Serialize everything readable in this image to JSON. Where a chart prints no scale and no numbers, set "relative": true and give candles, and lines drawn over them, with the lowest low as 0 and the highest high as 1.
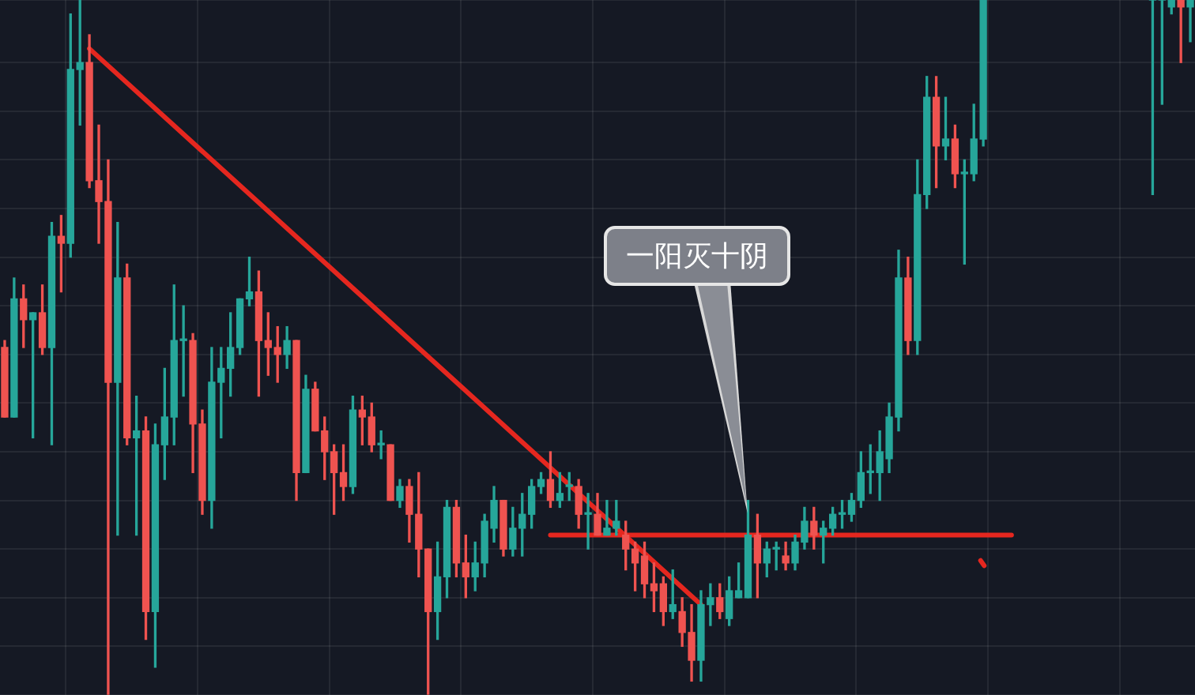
{
  "chart_data": {
    "type": "candlestick",
    "relative": true,
    "grid": true,
    "legend": false,
    "annotations": [
      "一阳灭十阴"
    ],
    "categories": [
      null,
      null,
      null,
      null,
      null,
      null,
      null,
      null,
      null,
      null,
      null,
      null,
      null,
      null,
      null,
      null,
      null,
      null,
      null,
      null,
      null,
      null,
      null,
      null,
      null,
      null,
      null,
      null,
      null,
      null,
      null,
      null,
      null,
      null,
      null,
      null,
      null,
      null,
      null,
      null,
      null,
      null,
      null,
      null,
      null,
      null,
      null,
      null,
      null,
      null,
      null,
      null,
      null,
      null,
      null,
      null,
      null,
      null,
      null,
      null,
      null,
      null,
      null,
      null,
      null,
      null,
      null,
      null,
      null,
      null,
      null,
      null,
      null,
      null,
      null,
      null,
      null,
      null,
      null,
      null,
      null,
      null,
      null,
      null,
      null,
      null,
      null,
      null,
      null,
      null,
      null,
      null,
      null,
      null,
      null,
      null,
      null,
      null,
      null,
      null,
      null,
      null,
      null,
      null,
      null,
      null,
      null,
      null,
      null,
      null,
      null,
      null,
      null,
      null,
      null,
      null,
      null,
      null,
      null,
      null,
      null,
      null,
      null,
      null,
      null,
      null,
      null
    ],
    "ohlc": [
      [
        0.5,
        0.51,
        0.4,
        0.4
      ],
      [
        0.4,
        0.6,
        0.4,
        0.57
      ],
      [
        0.57,
        0.59,
        0.5,
        0.54
      ],
      [
        0.54,
        0.55,
        0.37,
        0.55
      ],
      [
        0.55,
        0.59,
        0.49,
        0.5
      ],
      [
        0.5,
        0.68,
        0.36,
        0.66
      ],
      [
        0.66,
        0.69,
        0.58,
        0.65
      ],
      [
        0.65,
        0.98,
        0.63,
        0.9
      ],
      [
        0.9,
        1,
        0.82,
        0.91
      ],
      [
        0.91,
        0.95,
        0.73,
        0.74
      ],
      [
        0.74,
        0.82,
        0.65,
        0.71
      ],
      [
        0.71,
        0.77,
        0,
        0.45
      ],
      [
        0.45,
        0.68,
        0.23,
        0.6
      ],
      [
        0.6,
        0.62,
        0.36,
        0.37
      ],
      [
        0.37,
        0.43,
        0.23,
        0.38
      ],
      [
        0.38,
        0.4,
        0.08,
        0.12
      ],
      [
        0.12,
        0.39,
        0.04,
        0.36
      ],
      [
        0.36,
        0.47,
        0.31,
        0.4
      ],
      [
        0.4,
        0.59,
        0.36,
        0.51
      ],
      [
        0.51,
        0.56,
        0.43,
        0.51
      ],
      [
        0.51,
        0.52,
        0.32,
        0.39
      ],
      [
        0.39,
        0.41,
        0.26,
        0.28
      ],
      [
        0.28,
        0.5,
        0.24,
        0.45
      ],
      [
        0.45,
        0.5,
        0.37,
        0.47
      ],
      [
        0.47,
        0.55,
        0.43,
        0.5
      ],
      [
        0.5,
        0.57,
        0.49,
        0.57
      ],
      [
        0.57,
        0.63,
        0.56,
        0.58
      ],
      [
        0.58,
        0.61,
        0.43,
        0.51
      ],
      [
        0.51,
        0.55,
        0.46,
        0.5
      ],
      [
        0.5,
        0.53,
        0.45,
        0.49
      ],
      [
        0.49,
        0.53,
        0.47,
        0.51
      ],
      [
        0.51,
        0.51,
        0.28,
        0.32
      ],
      [
        0.32,
        0.46,
        0.32,
        0.44
      ],
      [
        0.44,
        0.45,
        0.38,
        0.38
      ],
      [
        0.38,
        0.4,
        0.31,
        0.35
      ],
      [
        0.35,
        0.36,
        0.26,
        0.32
      ],
      [
        0.32,
        0.36,
        0.28,
        0.3
      ],
      [
        0.3,
        0.43,
        0.29,
        0.41
      ],
      [
        0.41,
        0.43,
        0.36,
        0.4
      ],
      [
        0.4,
        0.42,
        0.35,
        0.36
      ],
      [
        0.36,
        0.38,
        0.34,
        0.36
      ],
      [
        0.36,
        0.36,
        0.28,
        0.28
      ],
      [
        0.28,
        0.31,
        0.27,
        0.3
      ],
      [
        0.3,
        0.31,
        0.22,
        0.26
      ],
      [
        0.26,
        0.32,
        0.17,
        0.21
      ],
      [
        0.21,
        0.21,
        0,
        0.12
      ],
      [
        0.12,
        0.22,
        0.08,
        0.17
      ],
      [
        0.17,
        0.28,
        0.14,
        0.27
      ],
      [
        0.27,
        0.28,
        0.17,
        0.19
      ],
      [
        0.19,
        0.23,
        0.14,
        0.17
      ],
      [
        0.17,
        0.22,
        0.15,
        0.19
      ],
      [
        0.19,
        0.26,
        0.17,
        0.25
      ],
      [
        0.24,
        0.3,
        0.22,
        0.28
      ],
      [
        0.28,
        0.28,
        0.2,
        0.21
      ],
      [
        0.21,
        0.27,
        0.2,
        0.24
      ],
      [
        0.24,
        0.29,
        0.2,
        0.26
      ],
      [
        0.26,
        0.31,
        0.24,
        0.3
      ],
      [
        0.3,
        0.32,
        0.29,
        0.31
      ],
      [
        0.31,
        0.35,
        0.27,
        0.28
      ],
      [
        0.28,
        0.32,
        0.27,
        0.29
      ],
      [
        0.3,
        0.32,
        0.28,
        0.3
      ],
      [
        0.3,
        0.31,
        0.24,
        0.26
      ],
      [
        0.26,
        0.29,
        0.21,
        0.26
      ],
      [
        0.26,
        0.29,
        0.23,
        0.23
      ],
      [
        0.23,
        0.28,
        0.23,
        0.24
      ],
      [
        0.24,
        0.28,
        0.23,
        0.25
      ],
      [
        0.23,
        0.25,
        0.18,
        0.21
      ],
      [
        0.21,
        0.22,
        0.15,
        0.19
      ],
      [
        0.2,
        0.22,
        0.14,
        0.16
      ],
      [
        0.16,
        0.19,
        0.12,
        0.15
      ],
      [
        0.16,
        0.17,
        0.1,
        0.12
      ],
      [
        0.12,
        0.18,
        0.11,
        0.13
      ],
      [
        0.12,
        0.14,
        0.07,
        0.09
      ],
      [
        0.09,
        0.13,
        0.02,
        0.05
      ],
      [
        0.05,
        0.15,
        0.02,
        0.13
      ],
      [
        0.13,
        0.16,
        0.1,
        0.14
      ],
      [
        0.14,
        0.16,
        0.11,
        0.12
      ],
      [
        0.11,
        0.17,
        0.1,
        0.15
      ],
      [
        0.14,
        0.19,
        0.14,
        0.15
      ],
      [
        0.14,
        0.28,
        0.14,
        0.23
      ],
      [
        0.23,
        0.26,
        0.14,
        0.19
      ],
      [
        0.19,
        0.22,
        0.17,
        0.21
      ],
      [
        0.21,
        0.22,
        0.18,
        0.21
      ],
      [
        0.2,
        0.22,
        0.18,
        0.19
      ],
      [
        0.19,
        0.23,
        0.18,
        0.22
      ],
      [
        0.22,
        0.27,
        0.21,
        0.25
      ],
      [
        0.25,
        0.27,
        0.21,
        0.23
      ],
      [
        0.23,
        0.25,
        0.19,
        0.24
      ],
      [
        0.24,
        0.27,
        0.23,
        0.26
      ],
      [
        0.26,
        0.28,
        0.24,
        0.26
      ],
      [
        0.26,
        0.29,
        0.25,
        0.28
      ],
      [
        0.28,
        0.35,
        0.27,
        0.32
      ],
      [
        0.32,
        0.36,
        0.29,
        0.32
      ],
      [
        0.32,
        0.38,
        0.28,
        0.35
      ],
      [
        0.34,
        0.42,
        0.32,
        0.4
      ],
      [
        0.4,
        0.64,
        0.38,
        0.6
      ],
      [
        0.6,
        0.63,
        0.49,
        0.51
      ],
      [
        0.51,
        0.77,
        0.49,
        0.72
      ],
      [
        0.72,
        0.89,
        0.7,
        0.86
      ],
      [
        0.86,
        0.89,
        0.73,
        0.79
      ],
      [
        0.79,
        0.86,
        0.77,
        0.8
      ],
      [
        0.8,
        0.82,
        0.73,
        0.75
      ],
      [
        0.75,
        0.77,
        0.62,
        0.75
      ],
      [
        0.75,
        0.85,
        0.74,
        0.8
      ],
      [
        0.8,
        1,
        0.79,
        1
      ],
      null,
      null,
      null,
      null,
      null,
      null,
      null,
      null,
      null,
      null,
      null,
      null,
      null,
      null,
      null,
      null,
      null,
      [
        1,
        1,
        0.72,
        1
      ],
      [
        1,
        1,
        0.85,
        1
      ],
      [
        0.99,
        1,
        0.98,
        1
      ],
      [
        1,
        1,
        0.91,
        0.99
      ],
      [
        0.99,
        1,
        0.94,
        1
      ]
    ],
    "series": [
      {
        "type": "line",
        "color": "#e5271f",
        "values": [
          null,
          null,
          null,
          null,
          null,
          null,
          null,
          null,
          null,
          0.93,
          null,
          null,
          null,
          null,
          null,
          null,
          null,
          null,
          null,
          null,
          null,
          null,
          null,
          null,
          null,
          null,
          null,
          null,
          null,
          null,
          null,
          null,
          null,
          null,
          null,
          null,
          null,
          null,
          null,
          null,
          null,
          null,
          null,
          null,
          null,
          null,
          null,
          null,
          null,
          null,
          null,
          null,
          null,
          null,
          null,
          null,
          null,
          null,
          null,
          null,
          null,
          null,
          null,
          null,
          null,
          null,
          null,
          null,
          null,
          null,
          null,
          null,
          null,
          null,
          0.13,
          null,
          null,
          null,
          null,
          null,
          null,
          null,
          null,
          null,
          null,
          null,
          null,
          null,
          null,
          null,
          null,
          null,
          null,
          null,
          null,
          null,
          null,
          null,
          null,
          null,
          null,
          null,
          null,
          null,
          null,
          null,
          null,
          null,
          null,
          null,
          null,
          null,
          null,
          null,
          null,
          null,
          null,
          null,
          null,
          null,
          null,
          null,
          null,
          null,
          null,
          null,
          null
        ]
      },
      {
        "type": "line",
        "color": "#e5271f",
        "values": [
          null,
          null,
          null,
          null,
          null,
          null,
          null,
          null,
          null,
          null,
          null,
          null,
          null,
          null,
          null,
          null,
          null,
          null,
          null,
          null,
          null,
          null,
          null,
          null,
          null,
          null,
          null,
          null,
          null,
          null,
          null,
          null,
          null,
          null,
          null,
          null,
          null,
          null,
          null,
          null,
          null,
          null,
          null,
          null,
          null,
          null,
          null,
          null,
          null,
          null,
          null,
          null,
          null,
          null,
          null,
          null,
          null,
          null,
          0.23,
          null,
          null,
          null,
          null,
          null,
          null,
          null,
          null,
          null,
          null,
          null,
          null,
          null,
          null,
          null,
          null,
          null,
          null,
          null,
          null,
          null,
          null,
          null,
          null,
          null,
          null,
          null,
          null,
          null,
          null,
          null,
          null,
          null,
          null,
          null,
          null,
          null,
          null,
          null,
          null,
          null,
          null,
          null,
          null,
          null,
          null,
          null,
          null,
          0.23,
          null,
          null,
          null,
          null,
          null,
          null,
          null,
          null,
          null,
          null,
          null,
          null,
          null,
          null,
          null,
          null,
          null,
          null,
          null
        ]
      }
    ]
  }
}
